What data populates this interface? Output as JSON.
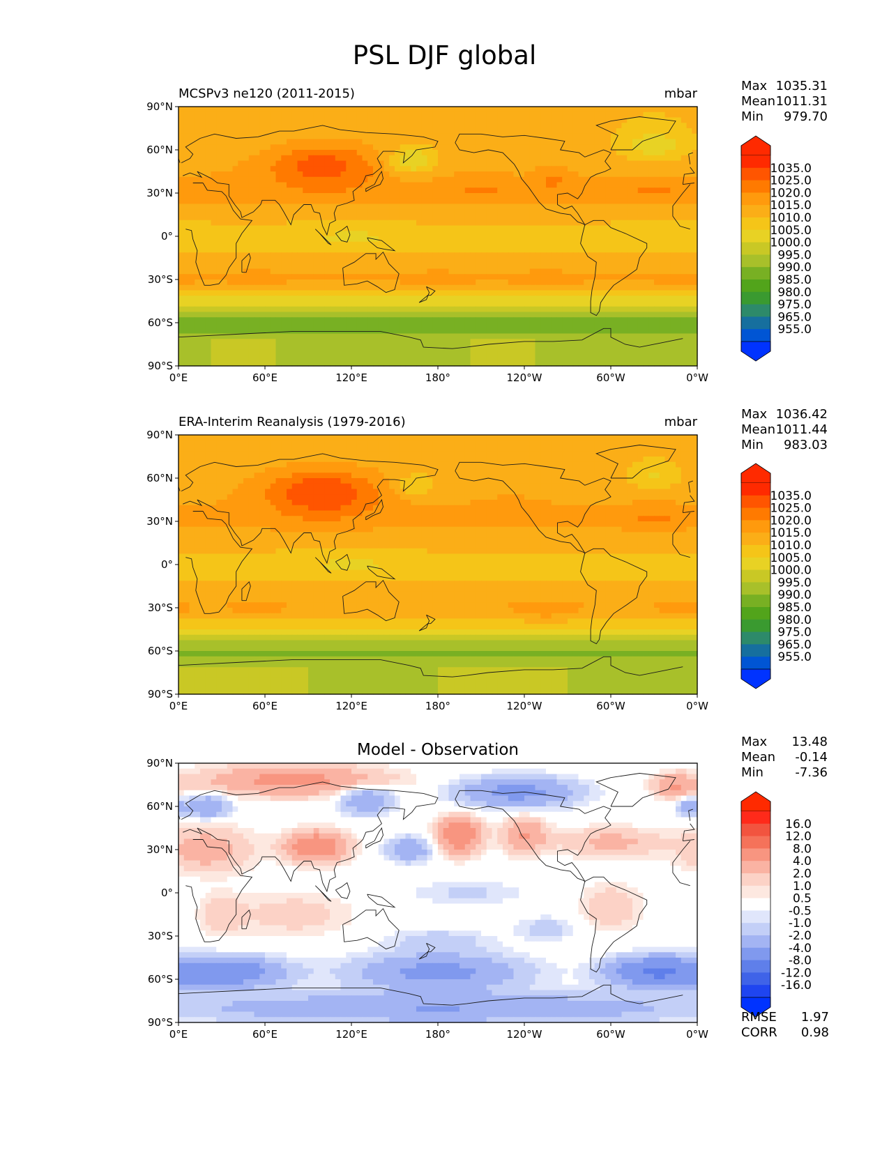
{
  "title": "PSL DJF global",
  "chart_data": [
    {
      "type": "heatmap",
      "panel": "test",
      "title": "MCSPv3 ne120 (2011-2015)",
      "units": "mbar",
      "x_ticks": [
        "0°E",
        "60°E",
        "120°E",
        "180°",
        "120°W",
        "60°W",
        "0°W"
      ],
      "y_ticks": [
        "90°N",
        "60°N",
        "30°N",
        "0°",
        "30°S",
        "60°S",
        "90°S"
      ],
      "xlim": [
        0,
        360
      ],
      "ylim": [
        -90,
        90
      ],
      "stats": [
        {
          "label": "Max",
          "value": "1035.31"
        },
        {
          "label": "Mean",
          "value": "1011.31"
        },
        {
          "label": "Min",
          "value": "979.70"
        }
      ],
      "colorbar": {
        "labels": [
          "1035.0",
          "1025.0",
          "1020.0",
          "1015.0",
          "1010.0",
          "1005.0",
          "1000.0",
          "995.0",
          "990.0",
          "985.0",
          "980.0",
          "975.0",
          "965.0",
          "955.0"
        ],
        "colors": [
          "#ff2a00",
          "#ff5500",
          "#ff7a00",
          "#ff9a0d",
          "#fbae17",
          "#f5c518",
          "#e8d224",
          "#c9c825",
          "#a8c02a",
          "#78b023",
          "#52a41b",
          "#3a9a30",
          "#2d8a6a",
          "#166f9e",
          "#0055d4"
        ],
        "colors_max_note": "top triangle",
        "color_over": "#ff2a00",
        "color_under": "#0033ff"
      },
      "base": {
        "equator": 1008,
        "subtrop": 1017,
        "midlat": 1012,
        "arctic": 1010,
        "southern_ocean": 986,
        "antarctica": 994
      },
      "features": [
        {
          "lon": 100,
          "lat": 50,
          "rlon": 38,
          "rlat": 16,
          "amp": 14
        },
        {
          "lon": 162,
          "lat": 52,
          "rlon": 16,
          "rlat": 9,
          "amp": -14
        },
        {
          "lon": 330,
          "lat": 63,
          "rlon": 22,
          "rlat": 12,
          "amp": -10
        },
        {
          "lon": 210,
          "lat": 32,
          "rlon": 22,
          "rlat": 8,
          "amp": 4
        },
        {
          "lon": 330,
          "lat": 33,
          "rlon": 25,
          "rlat": 7,
          "amp": 4
        },
        {
          "lon": 260,
          "lat": 40,
          "rlon": 10,
          "rlat": 8,
          "amp": 6
        },
        {
          "lon": 55,
          "lat": -30,
          "rlon": 15,
          "rlat": 5,
          "amp": 4
        },
        {
          "lon": 180,
          "lat": -30,
          "rlon": 20,
          "rlat": 5,
          "amp": 3
        },
        {
          "lon": 255,
          "lat": -32,
          "rlon": 18,
          "rlat": 6,
          "amp": 5
        },
        {
          "lon": 350,
          "lat": -32,
          "rlon": 15,
          "rlat": 5,
          "amp": 4
        },
        {
          "lon": 120,
          "lat": 3,
          "rlon": 40,
          "rlat": 10,
          "amp": -4
        },
        {
          "lon": 340,
          "lat": 3,
          "rlon": 50,
          "rlat": 8,
          "amp": -3
        }
      ]
    },
    {
      "type": "heatmap",
      "panel": "reference",
      "title": "ERA-Interim Reanalysis (1979-2016)",
      "units": "mbar",
      "x_ticks": [
        "0°E",
        "60°E",
        "120°E",
        "180°",
        "120°W",
        "60°W",
        "0°W"
      ],
      "y_ticks": [
        "90°N",
        "60°N",
        "30°N",
        "0°",
        "30°S",
        "60°S",
        "90°S"
      ],
      "xlim": [
        0,
        360
      ],
      "ylim": [
        -90,
        90
      ],
      "stats": [
        {
          "label": "Max",
          "value": "1036.42"
        },
        {
          "label": "Mean",
          "value": "1011.44"
        },
        {
          "label": "Min",
          "value": "983.03"
        }
      ],
      "colorbar": {
        "labels": [
          "1035.0",
          "1025.0",
          "1020.0",
          "1015.0",
          "1010.0",
          "1005.0",
          "1000.0",
          "995.0",
          "990.0",
          "985.0",
          "980.0",
          "975.0",
          "965.0",
          "955.0"
        ],
        "colors": [
          "#ff2a00",
          "#ff5500",
          "#ff7a00",
          "#ff9a0d",
          "#fbae17",
          "#f5c518",
          "#e8d224",
          "#c9c825",
          "#a8c02a",
          "#78b023",
          "#52a41b",
          "#3a9a30",
          "#2d8a6a",
          "#166f9e",
          "#0055d4"
        ],
        "color_over": "#ff2a00",
        "color_under": "#0033ff"
      },
      "base": {
        "equator": 1008,
        "subtrop": 1016,
        "midlat": 1013,
        "arctic": 1011,
        "southern_ocean": 989,
        "antarctica": 995
      },
      "features": [
        {
          "lon": 100,
          "lat": 50,
          "rlon": 38,
          "rlat": 16,
          "amp": 17
        },
        {
          "lon": 165,
          "lat": 55,
          "rlon": 14,
          "rlat": 8,
          "amp": -9
        },
        {
          "lon": 330,
          "lat": 62,
          "rlon": 20,
          "rlat": 10,
          "amp": -8
        },
        {
          "lon": 330,
          "lat": 33,
          "rlon": 25,
          "rlat": 7,
          "amp": 5
        },
        {
          "lon": 230,
          "lat": 38,
          "rlon": 20,
          "rlat": 8,
          "amp": 3
        },
        {
          "lon": 55,
          "lat": -30,
          "rlon": 15,
          "rlat": 5,
          "amp": 4
        },
        {
          "lon": 255,
          "lat": -32,
          "rlon": 18,
          "rlat": 6,
          "amp": 5
        },
        {
          "lon": 350,
          "lat": -32,
          "rlon": 15,
          "rlat": 5,
          "amp": 4
        },
        {
          "lon": 120,
          "lat": 3,
          "rlon": 40,
          "rlat": 10,
          "amp": -4
        }
      ]
    },
    {
      "type": "heatmap",
      "panel": "difference",
      "title": "Model - Observation",
      "units": "",
      "x_ticks": [
        "0°E",
        "60°E",
        "120°E",
        "180°",
        "120°W",
        "60°W",
        "0°W"
      ],
      "y_ticks": [
        "90°N",
        "60°N",
        "30°N",
        "0°",
        "30°S",
        "60°S",
        "90°S"
      ],
      "xlim": [
        0,
        360
      ],
      "ylim": [
        -90,
        90
      ],
      "stats": [
        {
          "label": "Max",
          "value": "13.48"
        },
        {
          "label": "Mean",
          "value": "-0.14"
        },
        {
          "label": "Min",
          "value": "-7.36"
        }
      ],
      "metrics": [
        {
          "label": "RMSE",
          "value": "1.97"
        },
        {
          "label": "CORR",
          "value": "0.98"
        }
      ],
      "colorbar": {
        "labels": [
          "16.0",
          "12.0",
          "8.0",
          "4.0",
          "2.0",
          "1.0",
          "0.5",
          "-0.5",
          "-1.0",
          "-2.0",
          "-4.0",
          "-8.0",
          "-12.0",
          "-16.0"
        ],
        "colors": [
          "#ff2a1a",
          "#f2543f",
          "#f5725a",
          "#f89580",
          "#fab3a3",
          "#fcd2c6",
          "#fde8e0",
          "#ffffff",
          "#e0e6fb",
          "#c3cff7",
          "#a3b4f3",
          "#8099ee",
          "#5f7fea",
          "#3f63e8",
          "#1f45f0"
        ],
        "color_over": "#ff2a00",
        "color_under": "#0033ff"
      },
      "features": [
        {
          "lon": 80,
          "lat": 78,
          "rlon": 60,
          "rlat": 10,
          "amp": 5
        },
        {
          "lon": 20,
          "lat": 30,
          "rlon": 30,
          "rlat": 15,
          "amp": 3
        },
        {
          "lon": 95,
          "lat": 32,
          "rlon": 20,
          "rlat": 10,
          "amp": 7
        },
        {
          "lon": 130,
          "lat": 65,
          "rlon": 18,
          "rlat": 10,
          "amp": -4
        },
        {
          "lon": 195,
          "lat": 40,
          "rlon": 14,
          "rlat": 12,
          "amp": 7
        },
        {
          "lon": 240,
          "lat": 40,
          "rlon": 15,
          "rlat": 12,
          "amp": 4
        },
        {
          "lon": 300,
          "lat": 35,
          "rlon": 35,
          "rlat": 10,
          "amp": 2.5
        },
        {
          "lon": 235,
          "lat": 70,
          "rlon": 40,
          "rlat": 10,
          "amp": -5
        },
        {
          "lon": 345,
          "lat": 74,
          "rlon": 15,
          "rlat": 8,
          "amp": 4
        },
        {
          "lon": 20,
          "lat": 60,
          "rlon": 15,
          "rlat": 8,
          "amp": -4
        },
        {
          "lon": 355,
          "lat": 60,
          "rlon": 8,
          "rlat": 6,
          "amp": -4
        },
        {
          "lon": 160,
          "lat": 30,
          "rlon": 14,
          "rlat": 8,
          "amp": -4
        },
        {
          "lon": 80,
          "lat": -15,
          "rlon": 40,
          "rlat": 15,
          "amp": 1.5
        },
        {
          "lon": 30,
          "lat": -15,
          "rlon": 15,
          "rlat": 15,
          "amp": 1.5
        },
        {
          "lon": 200,
          "lat": 0,
          "rlon": 40,
          "rlat": 8,
          "amp": -1.2
        },
        {
          "lon": 300,
          "lat": -10,
          "rlon": 20,
          "rlat": 15,
          "amp": 2
        },
        {
          "lon": 30,
          "lat": -55,
          "rlon": 40,
          "rlat": 10,
          "amp": -7
        },
        {
          "lon": 180,
          "lat": -55,
          "rlon": 55,
          "rlat": 12,
          "amp": -5
        },
        {
          "lon": 330,
          "lat": -55,
          "rlon": 30,
          "rlat": 10,
          "amp": -8
        },
        {
          "lon": 180,
          "lat": -80,
          "rlon": 180,
          "rlat": 10,
          "amp": -4
        },
        {
          "lon": 180,
          "lat": -33,
          "rlon": 35,
          "rlat": 8,
          "amp": -1.5
        },
        {
          "lon": 255,
          "lat": -25,
          "rlon": 20,
          "rlat": 8,
          "amp": -1.5
        }
      ]
    }
  ]
}
